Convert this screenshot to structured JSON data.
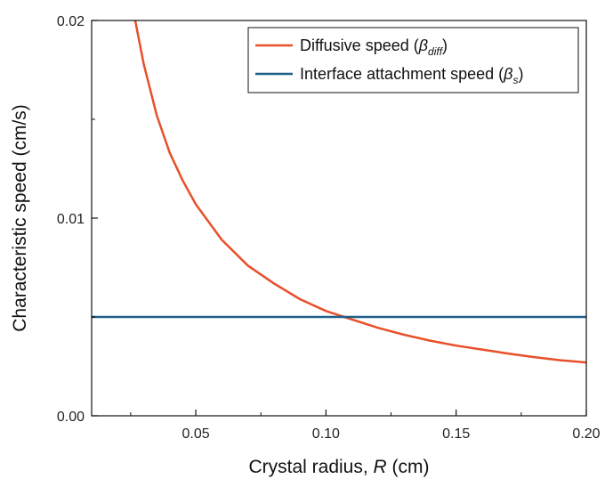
{
  "chart_data": {
    "type": "line",
    "xlabel_prefix": "Crystal radius, ",
    "xlabel_var": "R",
    "xlabel_suffix": " (cm)",
    "ylabel": "Characteristic speed (cm/s)",
    "xlim": [
      0.01,
      0.2
    ],
    "ylim": [
      0.0,
      0.02
    ],
    "x_ticks": [
      0.05,
      0.1,
      0.15,
      0.2
    ],
    "x_tick_labels": [
      "0.05",
      "0.10",
      "0.15",
      "0.20"
    ],
    "y_ticks": [
      0.0,
      0.01,
      0.02
    ],
    "y_tick_labels": [
      "0.00",
      "0.01",
      "0.02"
    ],
    "grid": false,
    "legend_position": "top-right",
    "series": [
      {
        "name": "Diffusive speed (β_diff)",
        "legend_main": "Diffusive speed (",
        "legend_symbol": "β",
        "legend_sub": "diff",
        "legend_close": ")",
        "color": "#e8502a",
        "x": [
          0.026,
          0.03,
          0.035,
          0.04,
          0.045,
          0.05,
          0.06,
          0.07,
          0.08,
          0.09,
          0.1,
          0.107,
          0.12,
          0.13,
          0.14,
          0.15,
          0.16,
          0.17,
          0.18,
          0.19,
          0.2
        ],
        "y": [
          0.0205,
          0.0178,
          0.0152,
          0.0133,
          0.0119,
          0.0107,
          0.0089,
          0.0076,
          0.0067,
          0.0059,
          0.0053,
          0.005,
          0.00445,
          0.0041,
          0.0038,
          0.00355,
          0.00335,
          0.00315,
          0.00297,
          0.00281,
          0.0027
        ]
      },
      {
        "name": "Interface attachment speed (β_s)",
        "legend_main": "Interface attachment speed (",
        "legend_symbol": "β",
        "legend_sub": "s",
        "legend_close": ")",
        "color": "#1f5f8b",
        "x": [
          0.01,
          0.2
        ],
        "y": [
          0.005,
          0.005
        ]
      }
    ]
  }
}
